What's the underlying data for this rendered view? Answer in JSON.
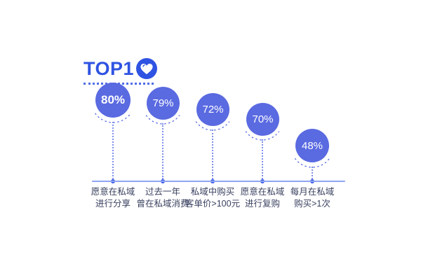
{
  "title": {
    "text": "TOP1",
    "icon": "heart-badge-icon"
  },
  "colors": {
    "bubble": "#5A6AE1",
    "title": "#2F53E2",
    "badge": "#2F53E2",
    "arc": "#5B6CE3",
    "vline": "#7D90EE",
    "baseline": "#8EA4F2",
    "axis_dot": "#3D5CE5",
    "label_text": "#3A4160",
    "value_text": "#FFFFFF"
  },
  "chart_data": {
    "type": "bar",
    "variant": "descending-bubble-infographic",
    "title": "TOP1",
    "unit": "%",
    "ylim": [
      0,
      100
    ],
    "grid": false,
    "legend": false,
    "categories": [
      "愿意在私域进行分享",
      "过去一年曾在私域消费",
      "私域中购买客单价>100元",
      "愿意在私域进行复购",
      "每月在私域购买>1次"
    ],
    "values": [
      80,
      79,
      72,
      70,
      48
    ],
    "value_labels": [
      "80%",
      "79%",
      "72%",
      "70%",
      "48%"
    ],
    "labels": [
      {
        "line1": "愿意在私域",
        "line2": "进行分享"
      },
      {
        "line1": "过去一年",
        "line2": "曾在私域消费"
      },
      {
        "line1": "私域中购买",
        "line2": "客单价>100元"
      },
      {
        "line1": "愿意在私域",
        "line2": "进行复购"
      },
      {
        "line1": "每月在私域",
        "line2": "购买>1次"
      }
    ]
  }
}
